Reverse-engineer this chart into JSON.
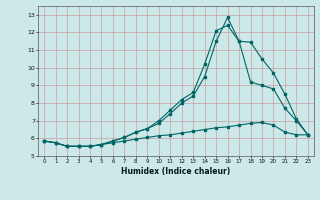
{
  "xlabel": "Humidex (Indice chaleur)",
  "bg_color": "#cce8e8",
  "grid_color": "#c8a0a0",
  "line_color": "#006666",
  "xlim": [
    -0.5,
    23.5
  ],
  "ylim": [
    5.0,
    13.5
  ],
  "yticks": [
    5,
    6,
    7,
    8,
    9,
    10,
    11,
    12,
    13
  ],
  "xticks": [
    0,
    1,
    2,
    3,
    4,
    5,
    6,
    7,
    8,
    9,
    10,
    11,
    12,
    13,
    14,
    15,
    16,
    17,
    18,
    19,
    20,
    21,
    22,
    23
  ],
  "line1_x": [
    0,
    1,
    2,
    3,
    4,
    5,
    6,
    7,
    8,
    9,
    10,
    11,
    12,
    13,
    14,
    15,
    16,
    17,
    18,
    19,
    20,
    21,
    22,
    23
  ],
  "line1_y": [
    5.85,
    5.75,
    5.55,
    5.55,
    5.55,
    5.65,
    5.75,
    5.85,
    5.95,
    6.05,
    6.15,
    6.2,
    6.3,
    6.4,
    6.5,
    6.6,
    6.65,
    6.75,
    6.85,
    6.9,
    6.75,
    6.35,
    6.2,
    6.2
  ],
  "line2_x": [
    0,
    1,
    2,
    3,
    4,
    5,
    6,
    7,
    8,
    9,
    10,
    11,
    12,
    13,
    14,
    15,
    16,
    17,
    18,
    19,
    20,
    21,
    22,
    23
  ],
  "line2_y": [
    5.85,
    5.75,
    5.55,
    5.55,
    5.55,
    5.65,
    5.85,
    6.05,
    6.35,
    6.55,
    7.0,
    7.6,
    8.2,
    8.6,
    10.2,
    12.1,
    12.4,
    11.5,
    11.45,
    10.5,
    9.7,
    8.5,
    7.1,
    6.2
  ],
  "line3_x": [
    0,
    1,
    2,
    3,
    4,
    5,
    6,
    7,
    8,
    9,
    10,
    11,
    12,
    13,
    14,
    15,
    16,
    17,
    18,
    19,
    20,
    21,
    22,
    23
  ],
  "line3_y": [
    5.85,
    5.75,
    5.55,
    5.55,
    5.55,
    5.65,
    5.85,
    6.05,
    6.35,
    6.55,
    6.85,
    7.4,
    8.0,
    8.4,
    9.5,
    11.5,
    12.85,
    11.5,
    9.2,
    9.0,
    8.8,
    7.7,
    7.0,
    6.2
  ]
}
